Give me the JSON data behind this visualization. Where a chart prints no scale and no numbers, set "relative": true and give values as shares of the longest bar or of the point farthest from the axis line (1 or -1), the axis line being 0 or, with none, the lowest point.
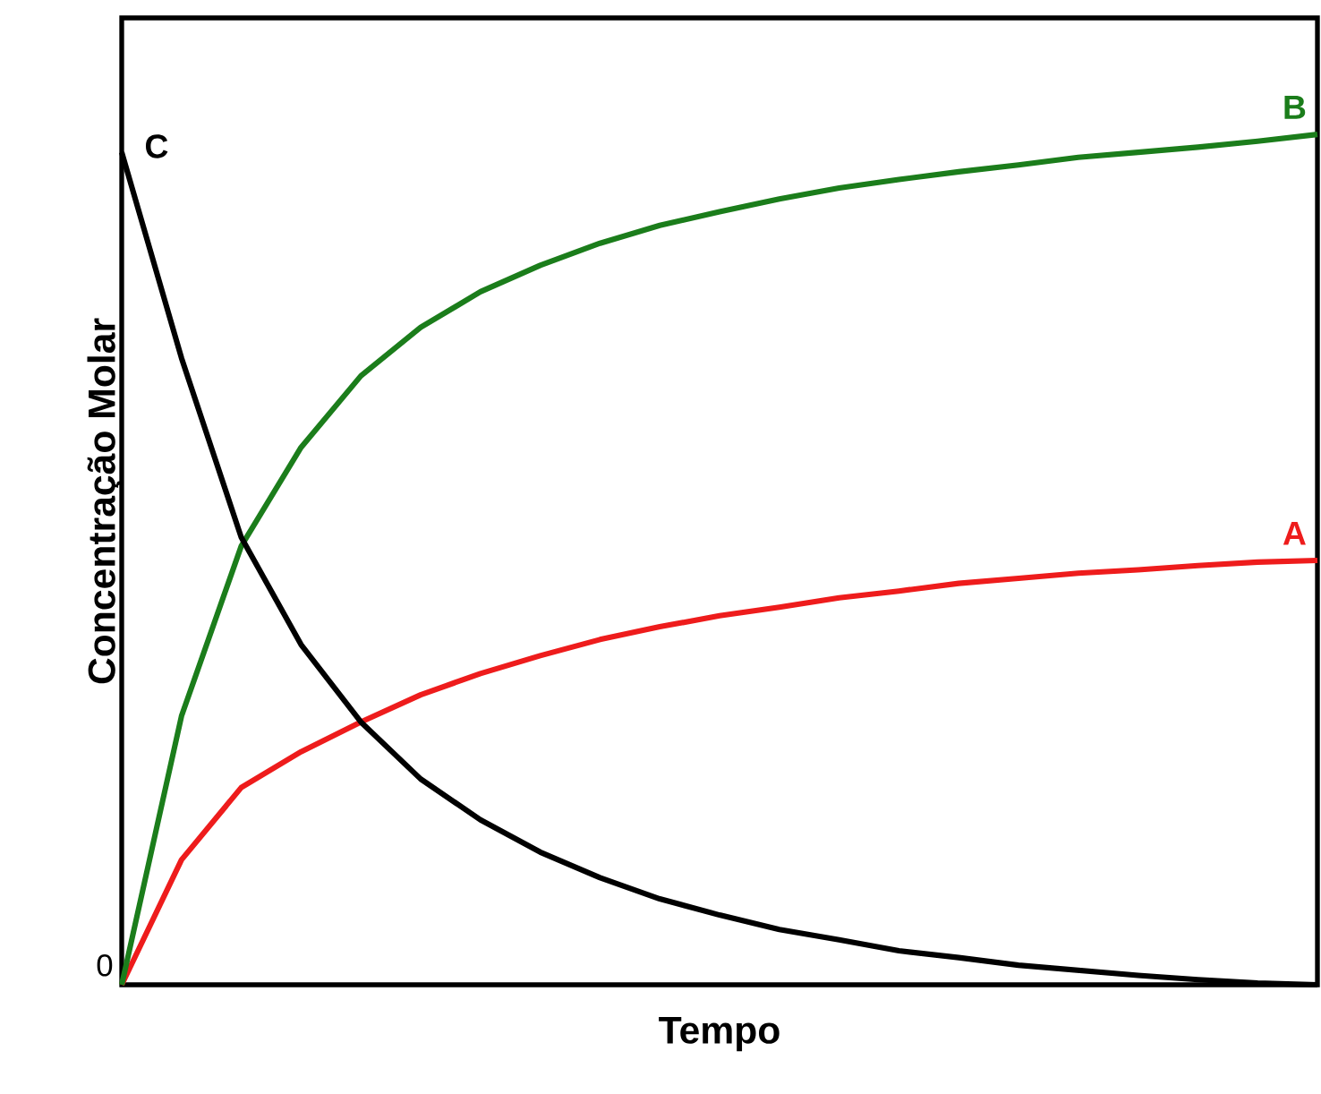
{
  "chart_data": {
    "type": "line",
    "xlabel": "Tempo",
    "ylabel": "Concentração Molar",
    "relative": true,
    "categories": [
      null,
      null,
      null,
      null,
      null,
      null,
      null,
      null,
      null,
      null,
      null,
      null,
      null,
      null,
      null,
      null,
      null,
      null,
      null,
      null,
      null
    ],
    "series": [
      {
        "name": "A",
        "color": "#ee1c1c",
        "values": [
          0,
          0.147,
          0.232,
          0.274,
          0.309,
          0.341,
          0.366,
          0.387,
          0.406,
          0.421,
          0.434,
          0.444,
          0.455,
          0.463,
          0.472,
          0.478,
          0.484,
          0.488,
          0.493,
          0.497,
          0.499
        ]
      },
      {
        "name": "B",
        "color": "#1b7d1b",
        "values": [
          0,
          0.316,
          0.516,
          0.632,
          0.716,
          0.773,
          0.815,
          0.846,
          0.872,
          0.893,
          0.909,
          0.924,
          0.937,
          0.947,
          0.956,
          0.964,
          0.973,
          0.979,
          0.985,
          0.992,
          1
        ]
      },
      {
        "name": "C",
        "color": "#000000",
        "values": [
          0.979,
          0.737,
          0.526,
          0.4,
          0.309,
          0.242,
          0.194,
          0.156,
          0.126,
          0.101,
          0.082,
          0.065,
          0.053,
          0.04,
          0.032,
          0.023,
          0.017,
          0.011,
          0.006,
          0.002,
          0
        ]
      }
    ],
    "annotations": [
      "0"
    ]
  }
}
